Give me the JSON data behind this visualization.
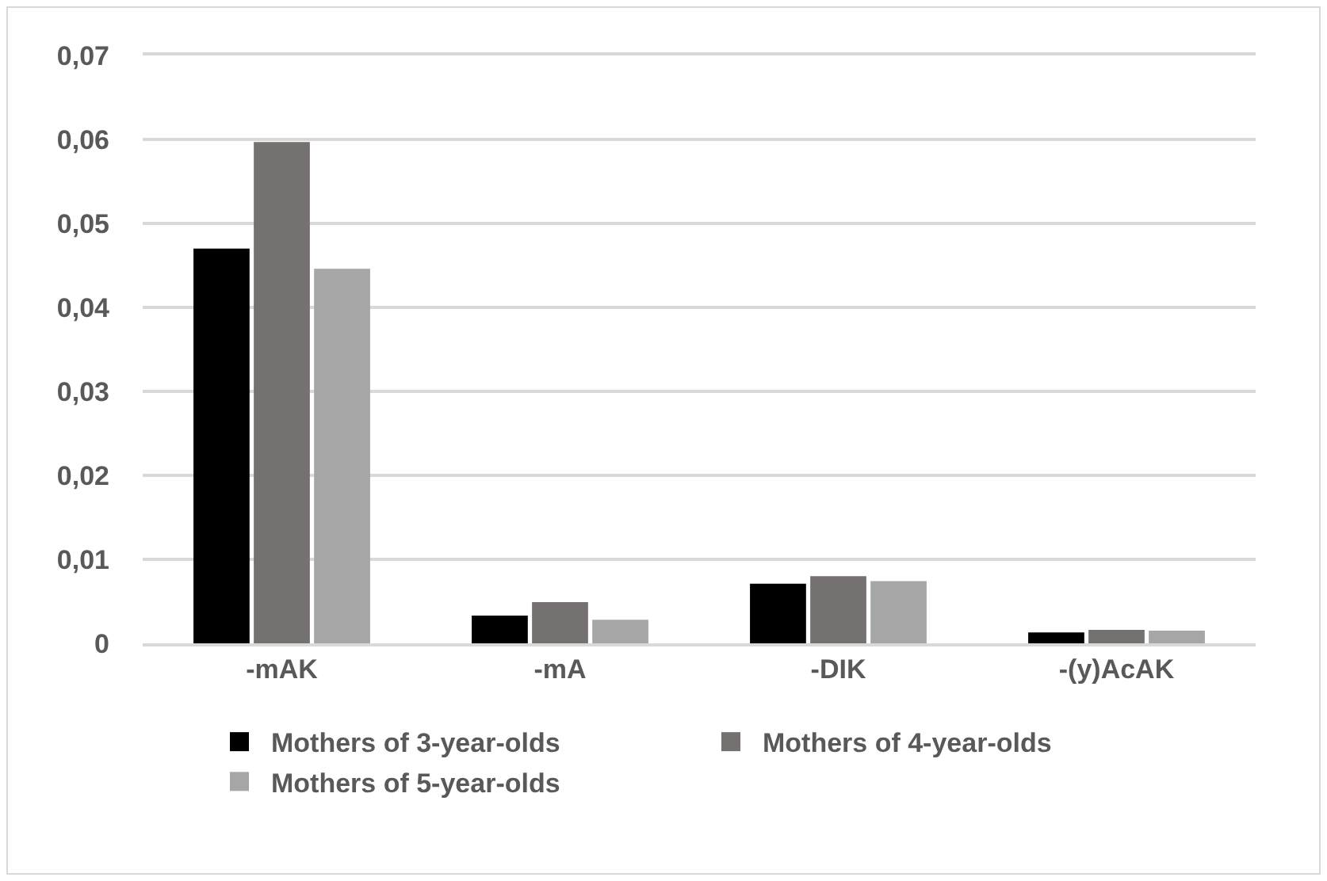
{
  "chart_data": {
    "type": "bar",
    "categories": [
      "-mAK",
      "-mA",
      "-DIK",
      "-(y)AcAK"
    ],
    "series": [
      {
        "name": "Mothers of 3-year-olds",
        "color": "#000000",
        "values": [
          0.047,
          0.0033,
          0.0071,
          0.0013
        ]
      },
      {
        "name": "Mothers of 4-year-olds",
        "color": "#767171",
        "values": [
          0.0597,
          0.0049,
          0.008,
          0.0016
        ]
      },
      {
        "name": "Mothers of 5-year-olds",
        "color": "#a6a6a6",
        "values": [
          0.0446,
          0.0028,
          0.0074,
          0.0015
        ]
      }
    ],
    "ylim": [
      0,
      0.07
    ],
    "yticks": [
      0,
      {
        "value": 0.01,
        "label": "0,01"
      },
      {
        "value": 0.02,
        "label": "0,02"
      },
      {
        "value": 0.03,
        "label": "0,03"
      },
      {
        "value": 0.04,
        "label": "0,04"
      },
      {
        "value": 0.05,
        "label": "0,05"
      },
      {
        "value": 0.06,
        "label": "0,06"
      },
      {
        "value": 0.07,
        "label": "0,07"
      }
    ],
    "grid": "y",
    "legend": "bottom"
  }
}
